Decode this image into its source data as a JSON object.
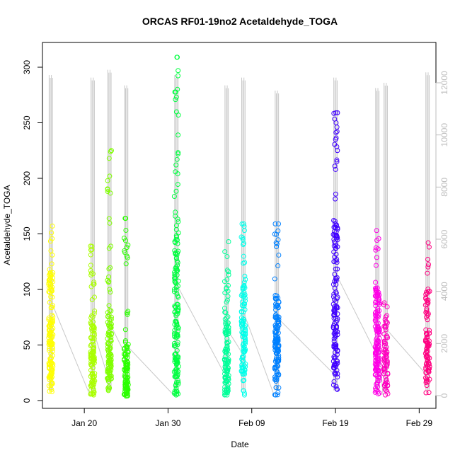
{
  "chart_data": {
    "type": "scatter",
    "title": "ORCAS RF01-19no2 Acetaldehyde_TOGA",
    "xlabel": "Date",
    "ylabel": "Acetaldehyde_TOGA",
    "x_start": "2016-01-15",
    "x_end": "2016-03-02",
    "x_ticks": [
      {
        "date": "2016-01-20",
        "label": "Jan 20"
      },
      {
        "date": "2016-01-30",
        "label": "Jan 30"
      },
      {
        "date": "2016-02-09",
        "label": "Feb 09"
      },
      {
        "date": "2016-02-19",
        "label": "Feb 19"
      },
      {
        "date": "2016-02-29",
        "label": "Feb 29"
      }
    ],
    "ylim": [
      0,
      320
    ],
    "y_ticks": [
      0,
      50,
      100,
      150,
      200,
      250,
      300
    ],
    "y2lim": [
      0,
      13000
    ],
    "y2_ticks": [
      0,
      2000,
      4000,
      6000,
      8000,
      10000,
      12000
    ],
    "y2_color": "#bdbdbd",
    "grid": false,
    "legend": "none",
    "series": [
      {
        "date": "2016-01-16",
        "color": "#ffff00",
        "median": 70,
        "min": 8,
        "max": 157,
        "maxAlt": 12300,
        "count": 140,
        "highlights": []
      },
      {
        "date": "2016-01-21",
        "color": "#aaff00",
        "median": 45,
        "min": 5,
        "max": 139,
        "maxAlt": 12200,
        "count": 120,
        "highlights": []
      },
      {
        "date": "2016-01-23",
        "color": "#80ff00",
        "median": 50,
        "min": 9,
        "max": 225,
        "maxAlt": 12500,
        "count": 120,
        "highlights": [
          225,
          224,
          202,
          190
        ]
      },
      {
        "date": "2016-01-25",
        "color": "#2bff00",
        "median": 30,
        "min": 4,
        "max": 164,
        "maxAlt": 11900,
        "count": 110,
        "highlights": [
          164,
          140
        ]
      },
      {
        "date": "2016-01-31",
        "color": "#00ff40",
        "median": 85,
        "min": 5,
        "max": 309,
        "maxAlt": 12300,
        "count": 160,
        "highlights": [
          309,
          239,
          222,
          217,
          212
        ]
      },
      {
        "date": "2016-02-06",
        "color": "#00ff99",
        "median": 45,
        "min": 5,
        "max": 143,
        "maxAlt": 11900,
        "count": 120,
        "highlights": []
      },
      {
        "date": "2016-02-08",
        "color": "#00ffea",
        "median": 60,
        "min": 5,
        "max": 159,
        "maxAlt": 12200,
        "count": 110,
        "highlights": [
          159
        ]
      },
      {
        "date": "2016-02-12",
        "color": "#0080ff",
        "median": 55,
        "min": 5,
        "max": 159,
        "maxAlt": 11700,
        "count": 130,
        "highlights": [
          159,
          142
        ]
      },
      {
        "date": "2016-02-19",
        "color": "#4000ff",
        "median": 95,
        "min": 10,
        "max": 259,
        "maxAlt": 12200,
        "count": 150,
        "highlights": [
          259,
          250,
          235,
          225,
          215,
          211,
          208
        ]
      },
      {
        "date": "2016-02-24",
        "color": "#ff00e6",
        "median": 60,
        "min": 6,
        "max": 153,
        "maxAlt": 11800,
        "count": 150,
        "highlights": []
      },
      {
        "date": "2016-02-25",
        "color": "#ff00bf",
        "median": 45,
        "min": 5,
        "max": 88,
        "maxAlt": 12000,
        "count": 70,
        "highlights": []
      },
      {
        "date": "2016-03-01",
        "color": "#ff0080",
        "median": 60,
        "min": 7,
        "max": 142,
        "maxAlt": 12400,
        "count": 90,
        "highlights": []
      }
    ]
  }
}
